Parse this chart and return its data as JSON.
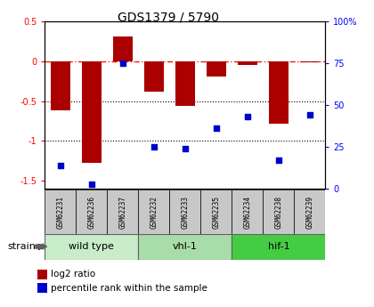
{
  "title": "GDS1379 / 5790",
  "samples": [
    "GSM62231",
    "GSM62236",
    "GSM62237",
    "GSM62232",
    "GSM62233",
    "GSM62235",
    "GSM62234",
    "GSM62238",
    "GSM62239"
  ],
  "log2_ratio": [
    -0.62,
    -1.27,
    0.31,
    -0.38,
    -0.56,
    -0.19,
    -0.05,
    -0.78,
    -0.01
  ],
  "percentile_rank": [
    14,
    3,
    75,
    25,
    24,
    36,
    43,
    17,
    44
  ],
  "groups": [
    {
      "label": "wild type",
      "indices": [
        0,
        1,
        2
      ],
      "color": "#c8edc8"
    },
    {
      "label": "vhl-1",
      "indices": [
        3,
        4,
        5
      ],
      "color": "#a8dca8"
    },
    {
      "label": "hif-1",
      "indices": [
        6,
        7,
        8
      ],
      "color": "#44cc44"
    }
  ],
  "bar_color": "#aa0000",
  "dot_color": "#0000cc",
  "ylim_left": [
    -1.6,
    0.5
  ],
  "ylim_right": [
    0,
    100
  ],
  "hlines_dotted": [
    -0.5,
    -1.0
  ],
  "sample_box_color": "#c8c8c8",
  "background_color": "#ffffff",
  "strain_label": "strain",
  "legend_bar": "log2 ratio",
  "legend_dot": "percentile rank within the sample",
  "left_yticks": [
    -1.5,
    -1.0,
    -0.5,
    0.0,
    0.5
  ],
  "left_yticklabels": [
    "-1.5",
    "-1",
    "-0.5",
    "0",
    "0.5"
  ],
  "right_yticks": [
    0,
    25,
    50,
    75,
    100
  ],
  "right_yticklabels": [
    "0",
    "25",
    "50",
    "75",
    "100%"
  ]
}
